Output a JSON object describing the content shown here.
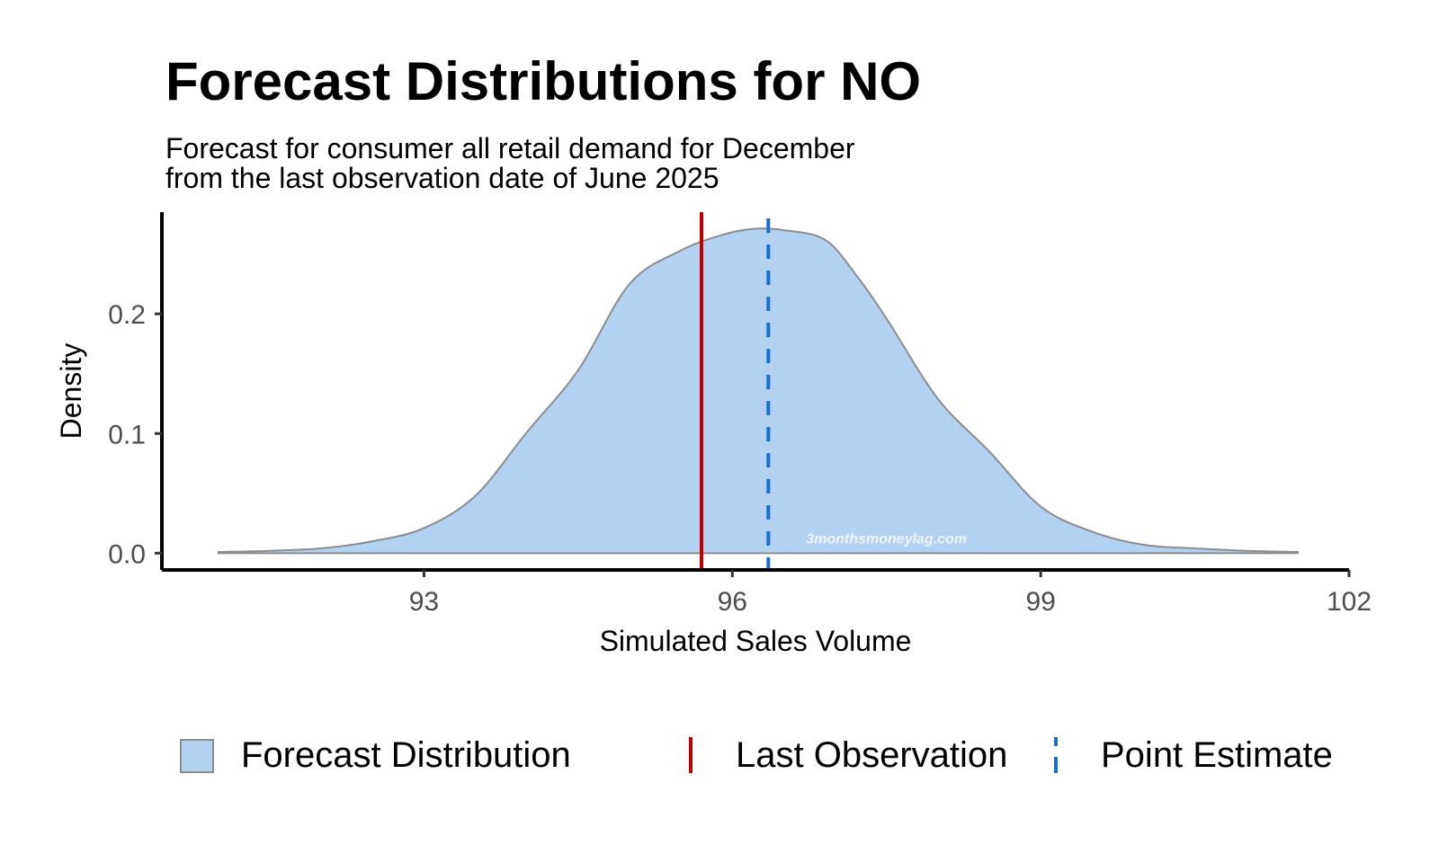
{
  "chart_data": {
    "type": "area",
    "title": "Forecast Distributions for NO",
    "subtitle": [
      "Forecast for consumer all retail demand for December",
      "from the last observation date of June 2025"
    ],
    "xlabel": "Simulated Sales Volume",
    "ylabel": "Density",
    "xlim": [
      90.45,
      102.0
    ],
    "ylim": [
      -0.014,
      0.285
    ],
    "x_ticks": [
      93,
      96,
      99,
      102
    ],
    "x_tick_labels": [
      "93",
      "96",
      "99",
      "102"
    ],
    "y_ticks": [
      0.0,
      0.1,
      0.2
    ],
    "y_tick_labels": [
      "0.0",
      "0.1",
      "0.2"
    ],
    "grid": false,
    "series": [
      {
        "name": "Forecast Distribution",
        "x": [
          91.0,
          91.5,
          92.0,
          92.5,
          93.0,
          93.5,
          94.0,
          94.5,
          95.0,
          95.5,
          95.9,
          96.2,
          96.5,
          96.9,
          97.2,
          97.5,
          98.0,
          98.5,
          99.0,
          99.5,
          100.0,
          100.5,
          101.0,
          101.5
        ],
        "y": [
          0.001,
          0.002,
          0.004,
          0.01,
          0.021,
          0.048,
          0.101,
          0.153,
          0.225,
          0.253,
          0.266,
          0.271,
          0.27,
          0.262,
          0.233,
          0.196,
          0.129,
          0.085,
          0.039,
          0.018,
          0.007,
          0.004,
          0.002,
          0.001
        ],
        "color": "#b3d1f0",
        "outline": "#8c8c8c"
      }
    ],
    "vlines": [
      {
        "name": "Last Observation",
        "x": 95.7,
        "color": "#c00000",
        "style": "solid"
      },
      {
        "name": "Point Estimate",
        "x": 96.35,
        "color": "#1a6fcc",
        "style": "dashed"
      }
    ],
    "watermark": "3monthsmoneylag.com",
    "legend_position": "bottom"
  },
  "legend": {
    "items": [
      {
        "label": "Forecast Distribution"
      },
      {
        "label": "Last Observation"
      },
      {
        "label": "Point Estimate"
      }
    ]
  }
}
